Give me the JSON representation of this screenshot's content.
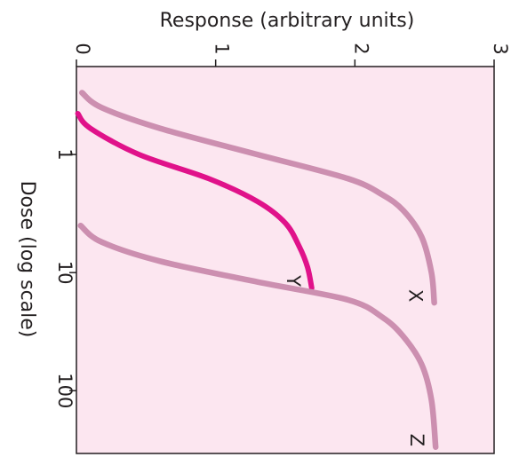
{
  "chart_data": {
    "type": "line",
    "title": "",
    "xlabel": "Dose (log scale)",
    "ylabel": "Response (arbitrary units)",
    "x_scale": "log",
    "x_ticks": [
      1,
      10,
      100
    ],
    "x_tick_labels": [
      "1",
      "10",
      "100"
    ],
    "y_ticks": [
      0,
      1,
      2,
      3
    ],
    "y_tick_labels": [
      "0",
      "1",
      "2",
      "3"
    ],
    "xlim": [
      0.18,
      340
    ],
    "ylim": [
      0,
      3
    ],
    "grid": false,
    "legend": "none",
    "series": [
      {
        "name": "X",
        "color": "#cc8fb0",
        "x": [
          0.3,
          0.4,
          0.6,
          1.0,
          1.6,
          2.2,
          3.0,
          5.0,
          10,
          18
        ],
        "y": [
          0.04,
          0.18,
          0.6,
          1.3,
          1.95,
          2.2,
          2.35,
          2.48,
          2.55,
          2.57
        ]
      },
      {
        "name": "Y",
        "color": "#e0128a",
        "x": [
          0.45,
          0.6,
          1.0,
          1.6,
          2.5,
          3.8,
          6.0,
          9.0,
          13.5
        ],
        "y": [
          0.01,
          0.1,
          0.45,
          0.95,
          1.3,
          1.5,
          1.6,
          1.66,
          1.69
        ]
      },
      {
        "name": "Z",
        "color": "#cc8fb0",
        "x": [
          4.0,
          5.5,
          8.0,
          12,
          17,
          24,
          35,
          60,
          120,
          300
        ],
        "y": [
          0.03,
          0.18,
          0.6,
          1.3,
          1.95,
          2.2,
          2.35,
          2.48,
          2.55,
          2.58
        ]
      }
    ],
    "colors": {
      "background": "#fce6f0",
      "frame": "#231f20"
    }
  }
}
